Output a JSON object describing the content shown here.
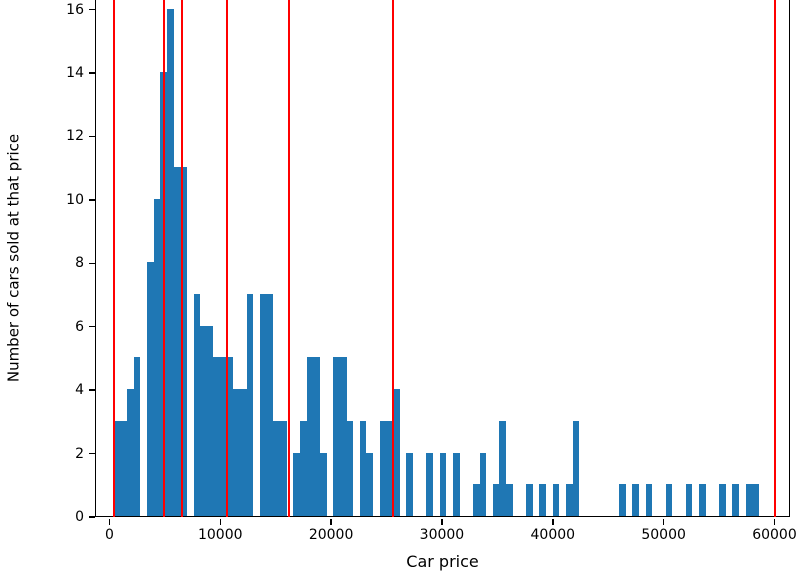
{
  "chart_data": {
    "type": "bar",
    "subtype": "histogram-with-vlines",
    "title": "",
    "xlabel": "Car price",
    "ylabel": "Number of cars sold at that price",
    "xlim": [
      -1300,
      61400
    ],
    "ylim": [
      0,
      16.3
    ],
    "grid": false,
    "legend": "none",
    "x_ticks": [
      0,
      10000,
      20000,
      30000,
      40000,
      50000,
      60000
    ],
    "y_ticks": [
      0,
      2,
      4,
      6,
      8,
      10,
      12,
      14,
      16
    ],
    "bar_color": "#1f77b4",
    "vline_color": "#ff0000",
    "bin_start": 300,
    "bin_width": 600,
    "bin_heights": [
      3,
      3,
      4,
      5,
      0,
      8,
      10,
      14,
      16,
      11,
      11,
      0,
      7,
      6,
      6,
      5,
      5,
      5,
      4,
      4,
      7,
      0,
      7,
      7,
      3,
      3,
      0,
      2,
      3,
      5,
      5,
      2,
      0,
      5,
      5,
      3,
      0,
      3,
      2,
      0,
      3,
      3,
      4,
      0,
      2,
      0,
      0,
      2,
      0,
      2,
      0,
      2,
      0,
      0,
      1,
      2,
      0,
      1,
      3,
      1,
      0,
      0,
      1,
      0,
      1,
      0,
      1,
      0,
      1,
      3,
      0,
      0,
      0,
      0,
      0,
      0,
      1,
      0,
      1,
      0,
      1,
      0,
      0,
      1,
      0,
      0,
      1,
      0,
      1,
      0,
      0,
      1,
      0,
      1,
      0,
      1,
      1
    ],
    "vlines": [
      300,
      4800,
      6500,
      10500,
      16100,
      25500,
      60000
    ]
  }
}
